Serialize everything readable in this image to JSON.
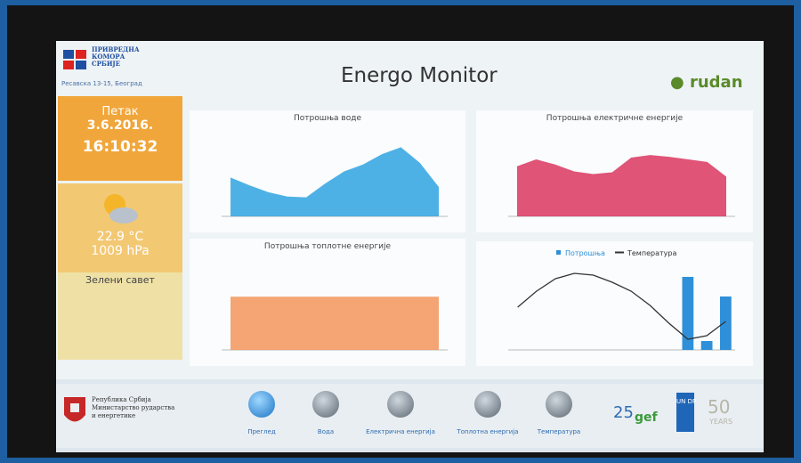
{
  "header": {
    "org": [
      "ПРИВРЕДНА",
      "КОМОРА",
      "СРБИЈЕ"
    ],
    "address": "Ресавска 13-15, Београд",
    "title": "Energo Monitor",
    "brand": "rudan"
  },
  "sidebar": {
    "day": "Петак",
    "date": "3.6.2016.",
    "time": "16:10:32",
    "temperature": "22.9 °C",
    "pressure": "1009 hPa",
    "tip_title": "Зелени савет"
  },
  "chart_data": [
    {
      "type": "area",
      "title": "Потрошња воде",
      "color": "#2fa3e0",
      "ylim": [
        0,
        100
      ],
      "series": [
        {
          "name": "Потрошња воде",
          "color": "#2fa3e0",
          "values": [
            45,
            36,
            28,
            23,
            22,
            38,
            52,
            60,
            72,
            80,
            62,
            34
          ]
        }
      ]
    },
    {
      "type": "area",
      "title": "Потрошња електричне енергије",
      "color": "#d9365f",
      "ylim": [
        0,
        100
      ],
      "series": [
        {
          "name": "Потрошња електричне енергије",
          "color": "#d9365f",
          "values": [
            58,
            66,
            60,
            52,
            49,
            51,
            68,
            71,
            69,
            66,
            63,
            46
          ]
        }
      ]
    },
    {
      "type": "area",
      "title": "Потрошња топлотне енергије",
      "color": "#f2955a",
      "ylim": [
        0,
        100
      ],
      "series": [
        {
          "name": "Потрошња топлотне енергије",
          "color": "#f2955a",
          "values": [
            58,
            58,
            58,
            58,
            58,
            58,
            58,
            58,
            58,
            58,
            58,
            58
          ]
        }
      ]
    },
    {
      "type": "combo",
      "ylim": [
        0,
        100
      ],
      "series": [
        {
          "name": "Потрошња",
          "kind": "bar",
          "color": "#2f8fd8",
          "values": [
            0,
            0,
            0,
            0,
            0,
            0,
            0,
            0,
            0,
            82,
            10,
            60
          ]
        },
        {
          "name": "Температура",
          "kind": "line",
          "color": "#333333",
          "values": [
            48,
            66,
            80,
            86,
            84,
            76,
            66,
            50,
            30,
            12,
            16,
            32
          ]
        }
      ]
    }
  ],
  "footer": {
    "ministry": [
      "Република Србија",
      "Министарство рударства",
      "и енергетике"
    ],
    "nav": [
      "Преглед",
      "Вода",
      "Електрична енергија",
      "Топлотна енергија",
      "Температура"
    ],
    "logos": {
      "gef_years": "25",
      "gef": "gef",
      "undp": "UN DP",
      "years50": "50",
      "years_word": "YEARS"
    }
  }
}
